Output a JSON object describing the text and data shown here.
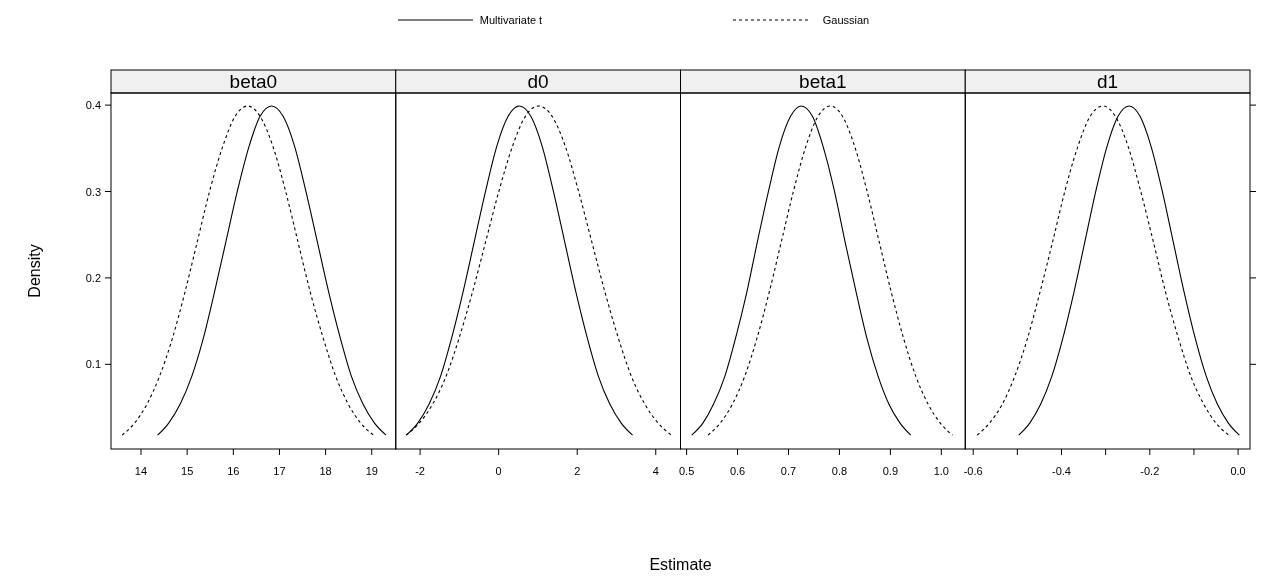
{
  "chart_data": [
    {
      "type": "line",
      "title": "beta0",
      "ylabel": "Density",
      "legend": "top",
      "xlim": [
        13.35,
        19.52
      ],
      "xticks": [
        14,
        15,
        16,
        17,
        18,
        19
      ],
      "ylim": [
        0.002,
        0.414
      ],
      "yticks": [
        0.1,
        0.2,
        0.3,
        0.4
      ],
      "series": [
        {
          "name": "Multivariate t",
          "color": "#000000",
          "line_style": "solid",
          "x": [
            14.36,
            14.6,
            14.85,
            15.1,
            15.35,
            15.59,
            15.84,
            16.09,
            16.34,
            16.58,
            16.83,
            17.08,
            17.33,
            17.57,
            17.82,
            18.07,
            18.32,
            18.56,
            18.81,
            19.06,
            19.31
          ],
          "values": [
            0.018,
            0.032,
            0.054,
            0.086,
            0.13,
            0.183,
            0.242,
            0.301,
            0.352,
            0.387,
            0.399,
            0.387,
            0.352,
            0.301,
            0.242,
            0.183,
            0.13,
            0.086,
            0.054,
            0.032,
            0.018
          ]
        },
        {
          "name": "Gaussian",
          "color": "#000000",
          "line_style": "dashed",
          "x": [
            13.59,
            13.86,
            14.13,
            14.4,
            14.68,
            14.95,
            15.22,
            15.49,
            15.77,
            16.04,
            16.31,
            16.58,
            16.86,
            17.13,
            17.4,
            17.67,
            17.95,
            18.22,
            18.49,
            18.76,
            19.04
          ],
          "values": [
            0.018,
            0.032,
            0.054,
            0.086,
            0.13,
            0.183,
            0.242,
            0.301,
            0.352,
            0.387,
            0.399,
            0.387,
            0.352,
            0.301,
            0.242,
            0.183,
            0.13,
            0.086,
            0.054,
            0.032,
            0.018
          ]
        }
      ]
    },
    {
      "type": "line",
      "title": "d0",
      "xlabel": "Estimate",
      "tick_labels": "x",
      "xlim": [
        -2.62,
        4.63
      ],
      "xticks": [
        -2,
        0,
        2,
        4
      ],
      "ylim": [
        0.002,
        0.414
      ],
      "yticks": [
        0.1,
        0.2,
        0.3,
        0.4
      ],
      "series": [
        {
          "color": "#000000",
          "line_style": "solid",
          "x": [
            -2.35,
            -2.06,
            -1.77,
            -1.48,
            -1.2,
            -0.91,
            -0.62,
            -0.33,
            -0.05,
            0.24,
            0.53,
            0.82,
            1.11,
            1.39,
            1.68,
            1.97,
            2.26,
            2.54,
            2.83,
            3.12,
            3.41
          ],
          "values": [
            0.018,
            0.032,
            0.054,
            0.086,
            0.13,
            0.183,
            0.242,
            0.301,
            0.352,
            0.387,
            0.399,
            0.387,
            0.352,
            0.301,
            0.242,
            0.183,
            0.13,
            0.086,
            0.054,
            0.032,
            0.018
          ]
        },
        {
          "color": "#000000",
          "line_style": "dashed",
          "x": [
            -2.36,
            -2.02,
            -1.68,
            -1.34,
            -1.01,
            -0.67,
            -0.33,
            0.01,
            0.35,
            0.68,
            1.02,
            1.36,
            1.7,
            2.03,
            2.37,
            2.71,
            3.05,
            3.38,
            3.72,
            4.06,
            4.4
          ],
          "values": [
            0.018,
            0.032,
            0.054,
            0.086,
            0.13,
            0.183,
            0.242,
            0.301,
            0.352,
            0.387,
            0.399,
            0.387,
            0.352,
            0.301,
            0.242,
            0.183,
            0.13,
            0.086,
            0.054,
            0.032,
            0.018
          ]
        }
      ]
    },
    {
      "type": "line",
      "title": "beta1",
      "tick_labels": "x",
      "xlim": [
        0.488,
        1.047
      ],
      "xticks": [
        0.5,
        0.6,
        0.7,
        0.8,
        0.9,
        {
          "value": 1.0,
          "label": "1.0"
        }
      ],
      "ylim": [
        0.002,
        0.414
      ],
      "yticks": [
        0.1,
        0.2,
        0.3,
        0.4
      ],
      "series": [
        {
          "color": "#000000",
          "line_style": "solid",
          "x": [
            0.51,
            0.532,
            0.553,
            0.575,
            0.596,
            0.618,
            0.639,
            0.661,
            0.682,
            0.704,
            0.725,
            0.747,
            0.768,
            0.79,
            0.811,
            0.833,
            0.854,
            0.876,
            0.897,
            0.919,
            0.94
          ],
          "values": [
            0.018,
            0.032,
            0.054,
            0.086,
            0.13,
            0.183,
            0.242,
            0.301,
            0.352,
            0.387,
            0.399,
            0.387,
            0.352,
            0.301,
            0.242,
            0.183,
            0.13,
            0.086,
            0.054,
            0.032,
            0.018
          ]
        },
        {
          "color": "#000000",
          "line_style": "dashed",
          "x": [
            0.542,
            0.566,
            0.59,
            0.614,
            0.638,
            0.662,
            0.686,
            0.71,
            0.734,
            0.758,
            0.782,
            0.806,
            0.83,
            0.854,
            0.878,
            0.902,
            0.926,
            0.95,
            0.974,
            0.998,
            1.022
          ],
          "values": [
            0.018,
            0.032,
            0.054,
            0.086,
            0.13,
            0.183,
            0.242,
            0.301,
            0.352,
            0.387,
            0.399,
            0.387,
            0.352,
            0.301,
            0.242,
            0.183,
            0.13,
            0.086,
            0.054,
            0.032,
            0.018
          ]
        }
      ]
    },
    {
      "type": "line",
      "title": "d1",
      "tick_labels": "x",
      "xlim": [
        -0.618,
        0.027
      ],
      "xticks": [
        -0.6,
        {
          "value": -0.5,
          "label": null
        },
        -0.4,
        {
          "value": -0.3,
          "label": null
        },
        -0.2,
        {
          "value": -0.1,
          "label": null
        },
        {
          "value": 0.0,
          "label": "0.0"
        }
      ],
      "ylim": [
        0.002,
        0.414
      ],
      "yticks": [
        0.1,
        0.2,
        0.3,
        0.4
      ],
      "series": [
        {
          "color": "#000000",
          "line_style": "solid",
          "x": [
            -0.497,
            -0.472,
            -0.447,
            -0.422,
            -0.397,
            -0.372,
            -0.347,
            -0.322,
            -0.297,
            -0.272,
            -0.247,
            -0.222,
            -0.197,
            -0.172,
            -0.147,
            -0.122,
            -0.097,
            -0.072,
            -0.047,
            -0.022,
            0.003
          ],
          "values": [
            0.018,
            0.032,
            0.054,
            0.086,
            0.13,
            0.183,
            0.242,
            0.301,
            0.352,
            0.387,
            0.399,
            0.387,
            0.352,
            0.301,
            0.242,
            0.183,
            0.13,
            0.086,
            0.054,
            0.032,
            0.018
          ]
        },
        {
          "color": "#000000",
          "line_style": "dashed",
          "x": [
            -0.591,
            -0.563,
            -0.534,
            -0.506,
            -0.477,
            -0.449,
            -0.42,
            -0.392,
            -0.363,
            -0.335,
            -0.306,
            -0.278,
            -0.249,
            -0.221,
            -0.192,
            -0.164,
            -0.135,
            -0.107,
            -0.078,
            -0.05,
            -0.021
          ],
          "values": [
            0.018,
            0.032,
            0.054,
            0.086,
            0.13,
            0.183,
            0.242,
            0.301,
            0.352,
            0.387,
            0.399,
            0.387,
            0.352,
            0.301,
            0.242,
            0.183,
            0.13,
            0.086,
            0.054,
            0.032,
            0.018
          ]
        }
      ]
    }
  ]
}
